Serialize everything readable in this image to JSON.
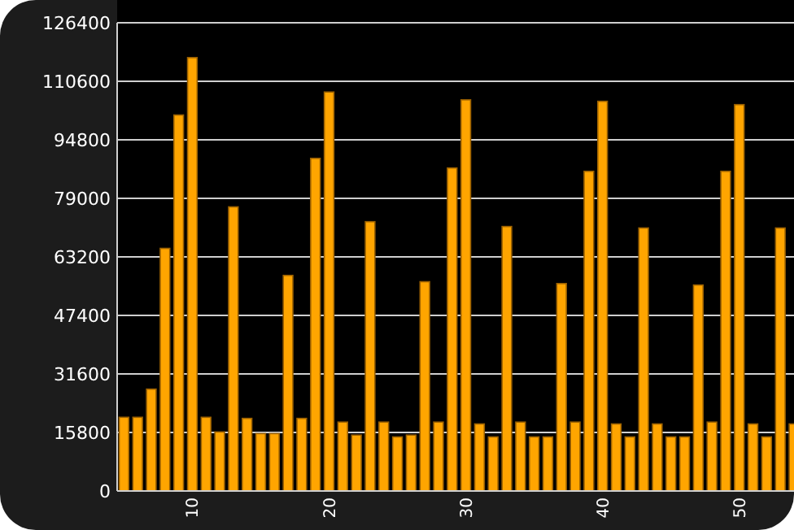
{
  "chart_data": {
    "type": "bar",
    "color": "#ffa500",
    "x": [
      5,
      6,
      7,
      8,
      9,
      10,
      11,
      12,
      13,
      14,
      15,
      16,
      17,
      18,
      19,
      20,
      21,
      22,
      23,
      24,
      25,
      26,
      27,
      28,
      29,
      30,
      31,
      32,
      33,
      34,
      35,
      36,
      37,
      38,
      39,
      40,
      41,
      42,
      43,
      44,
      45,
      46,
      47,
      48,
      49,
      50,
      51,
      52,
      53,
      54
    ],
    "values": [
      19900,
      19900,
      27500,
      65500,
      101500,
      117000,
      19900,
      15950,
      76700,
      19600,
      15500,
      15500,
      58200,
      19600,
      89800,
      107700,
      18600,
      15100,
      72700,
      18600,
      14600,
      15100,
      56500,
      18600,
      87200,
      105600,
      18100,
      14600,
      71400,
      18600,
      14600,
      14600,
      56000,
      18600,
      86300,
      105200,
      18100,
      14600,
      71000,
      18100,
      14600,
      14600,
      55600,
      18600,
      86300,
      104300,
      18100,
      14600,
      71000,
      18100
    ],
    "xlim": [
      4.5,
      54
    ],
    "xticks": [
      10,
      20,
      30,
      40,
      50
    ],
    "ylim": [
      0,
      126400
    ],
    "yticks": [
      0,
      15800,
      31600,
      47400,
      63200,
      79000,
      94800,
      110600,
      126400
    ],
    "grid": "y"
  }
}
